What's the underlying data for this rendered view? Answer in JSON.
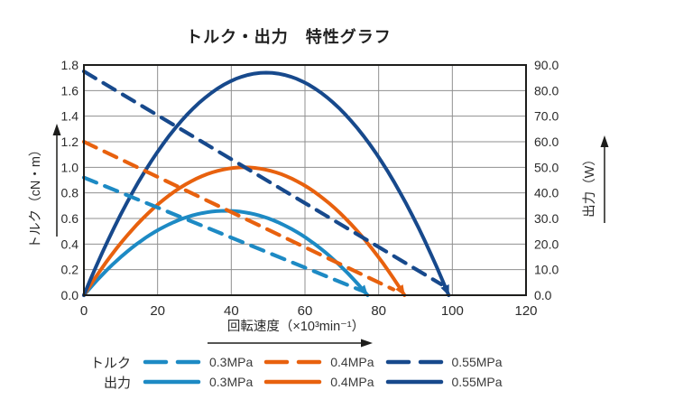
{
  "title": "トルク・出力　特性グラフ",
  "chart_data": {
    "type": "line",
    "title": "トルク・出力　特性グラフ",
    "grid": true,
    "x_axis": {
      "label": "回転速度（×10³min⁻¹）",
      "min": 0,
      "max": 120,
      "tick_step": 20,
      "ticks": [
        "0",
        "20",
        "40",
        "60",
        "80",
        "100",
        "120"
      ]
    },
    "y_left": {
      "label": "トルク（cN・m）",
      "unit": "cN・m",
      "min": 0,
      "max": 1.8,
      "tick_step": 0.2,
      "ticks": [
        "0.0",
        "0.2",
        "0.4",
        "0.6",
        "0.8",
        "1.0",
        "1.2",
        "1.4",
        "1.6",
        "1.8"
      ]
    },
    "y_right": {
      "label": "出力（W）",
      "unit": "W",
      "min": 0,
      "max": 90,
      "tick_step": 10,
      "ticks": [
        "0.0",
        "10.0",
        "20.0",
        "30.0",
        "40.0",
        "50.0",
        "60.0",
        "70.0",
        "80.0",
        "90.0"
      ]
    },
    "series": [
      {
        "group": "出力",
        "pressure": "0.3MPa",
        "style": "solid",
        "axis": "right",
        "unit": "W",
        "color": "#1d8ac4",
        "free_speed": 77,
        "peak_x": 38.5,
        "peak_y": 33,
        "points": [
          [
            0,
            0
          ],
          [
            19,
            24.5
          ],
          [
            38.5,
            33
          ],
          [
            58,
            24.5
          ],
          [
            77,
            0
          ]
        ]
      },
      {
        "group": "出力",
        "pressure": "0.4MPa",
        "style": "solid",
        "axis": "right",
        "unit": "W",
        "color": "#e8610e",
        "free_speed": 87,
        "peak_x": 43.5,
        "peak_y": 50,
        "points": [
          [
            0,
            0
          ],
          [
            22,
            37.8
          ],
          [
            43.5,
            50
          ],
          [
            65,
            37.8
          ],
          [
            87,
            0
          ]
        ]
      },
      {
        "group": "出力",
        "pressure": "0.55MPa",
        "style": "solid",
        "axis": "right",
        "unit": "W",
        "color": "#17498c",
        "free_speed": 99,
        "peak_x": 49.5,
        "peak_y": 87,
        "points": [
          [
            0,
            0
          ],
          [
            25,
            65.7
          ],
          [
            49.5,
            87
          ],
          [
            74,
            65.7
          ],
          [
            99,
            0
          ]
        ]
      },
      {
        "group": "トルク",
        "pressure": "0.3MPa",
        "style": "dashed",
        "axis": "left",
        "unit": "cN・m",
        "color": "#1d8ac4",
        "stall_torque": 0.92,
        "points": [
          [
            0,
            0.92
          ],
          [
            75,
            0.04
          ]
        ]
      },
      {
        "group": "トルク",
        "pressure": "0.4MPa",
        "style": "dashed",
        "axis": "left",
        "unit": "cN・m",
        "color": "#e8610e",
        "stall_torque": 1.2,
        "points": [
          [
            0,
            1.2
          ],
          [
            84,
            0.045
          ]
        ]
      },
      {
        "group": "トルク",
        "pressure": "0.55MPa",
        "style": "dashed",
        "axis": "left",
        "unit": "cN・m",
        "color": "#17498c",
        "stall_torque": 1.75,
        "points": [
          [
            0,
            1.75
          ],
          [
            97,
            0.085
          ]
        ]
      }
    ]
  },
  "legend": {
    "rows": [
      {
        "label": "トルク",
        "style": "dashed",
        "entries": [
          {
            "label": "0.3MPa",
            "color": "#1d8ac4"
          },
          {
            "label": "0.4MPa",
            "color": "#e8610e"
          },
          {
            "label": "0.55MPa",
            "color": "#17498c"
          }
        ]
      },
      {
        "label": "出力",
        "style": "solid",
        "entries": [
          {
            "label": "0.3MPa",
            "color": "#1d8ac4"
          },
          {
            "label": "0.4MPa",
            "color": "#e8610e"
          },
          {
            "label": "0.55MPa",
            "color": "#17498c"
          }
        ]
      }
    ]
  }
}
